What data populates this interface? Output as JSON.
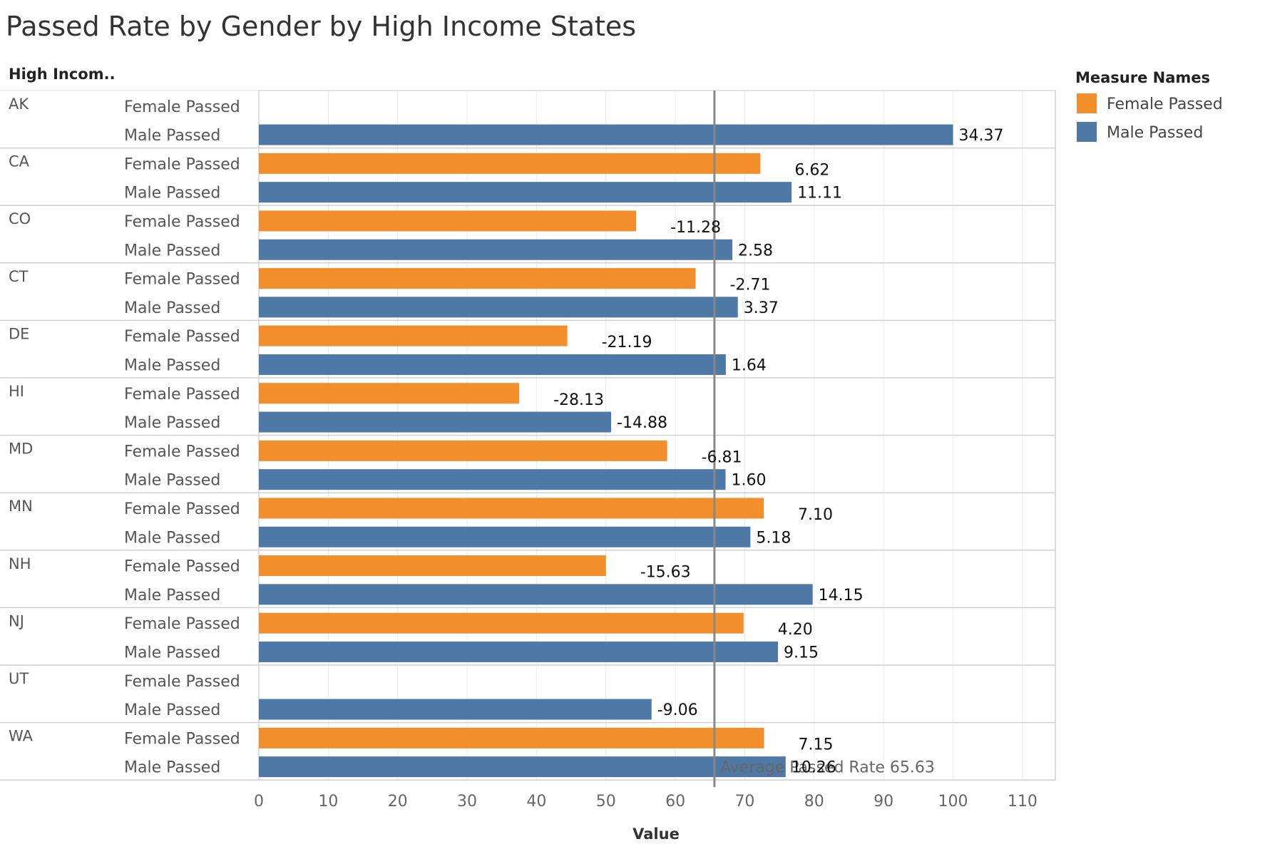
{
  "chart_data": {
    "type": "bar",
    "orientation": "horizontal",
    "title": "Passed Rate by Gender by High Income States",
    "row_header": "High Incom..",
    "xlabel": "Value",
    "xlim": [
      0,
      110
    ],
    "x_ticks": [
      0,
      10,
      20,
      30,
      40,
      50,
      60,
      70,
      80,
      90,
      100,
      110
    ],
    "grid": true,
    "legend_title": "Measure Names",
    "legend_placement": "right",
    "categories": [
      "AK",
      "CA",
      "CO",
      "CT",
      "DE",
      "HI",
      "MD",
      "MN",
      "NH",
      "NJ",
      "UT",
      "WA"
    ],
    "measures": [
      "Female Passed",
      "Male Passed"
    ],
    "series": [
      {
        "name": "Female Passed",
        "color": "#f28e2b",
        "values": [
          null,
          72.25,
          54.35,
          62.92,
          44.44,
          37.5,
          58.82,
          72.73,
          50.0,
          69.83,
          null,
          72.78
        ],
        "labels": [
          "",
          "6.62",
          "-11.28",
          "-2.71",
          "-21.19",
          "-28.13",
          "-6.81",
          "7.10",
          "-15.63",
          "4.20",
          "",
          "7.15"
        ]
      },
      {
        "name": "Male Passed",
        "color": "#4e79a7",
        "values": [
          100.0,
          76.74,
          68.21,
          69.0,
          67.27,
          50.75,
          67.23,
          70.81,
          79.78,
          74.78,
          56.57,
          75.89
        ],
        "labels": [
          "34.37",
          "11.11",
          "2.58",
          "3.37",
          "1.64",
          "-14.88",
          "1.60",
          "5.18",
          "14.15",
          "9.15",
          "-9.06",
          "10.26"
        ]
      }
    ],
    "reference_line": {
      "value": 65.63,
      "label": "Average Passed Rate 65.63"
    }
  }
}
